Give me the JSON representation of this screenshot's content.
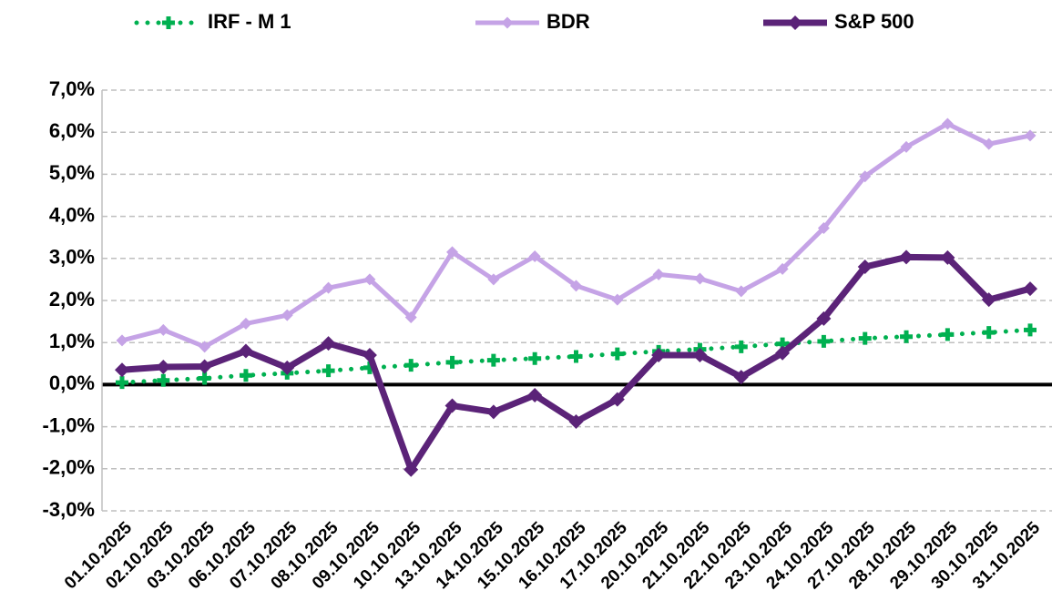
{
  "chart_data": {
    "type": "line",
    "categories": [
      "01.10.2025",
      "02.10.2025",
      "03.10.2025",
      "06.10.2025",
      "07.10.2025",
      "08.10.2025",
      "09.10.2025",
      "10.10.2025",
      "13.10.2025",
      "14.10.2025",
      "15.10.2025",
      "16.10.2025",
      "17.10.2025",
      "20.10.2025",
      "21.10.2025",
      "22.10.2025",
      "23.10.2025",
      "24.10.2025",
      "27.10.2025",
      "28.10.2025",
      "29.10.2025",
      "30.10.2025",
      "31.10.2025"
    ],
    "series": [
      {
        "name": "IRF - M 1",
        "color": "#00b050",
        "line_style": "dotted",
        "marker": "cross",
        "values": [
          0.05,
          0.1,
          0.15,
          0.22,
          0.27,
          0.33,
          0.4,
          0.46,
          0.53,
          0.58,
          0.62,
          0.67,
          0.73,
          0.79,
          0.84,
          0.9,
          0.97,
          1.03,
          1.1,
          1.14,
          1.19,
          1.24,
          1.3
        ]
      },
      {
        "name": "BDR",
        "color": "#c5a3e6",
        "line_style": "solid",
        "marker": "diamond",
        "values": [
          1.05,
          1.3,
          0.9,
          1.45,
          1.65,
          2.3,
          2.5,
          1.6,
          3.15,
          2.5,
          3.05,
          2.35,
          2.02,
          2.62,
          2.52,
          2.22,
          2.75,
          3.72,
          4.95,
          5.65,
          6.2,
          5.72,
          5.92
        ]
      },
      {
        "name": "S&P 500",
        "color": "#5b2378",
        "line_style": "solid",
        "marker": "diamond",
        "values": [
          0.35,
          0.42,
          0.43,
          0.8,
          0.4,
          0.98,
          0.7,
          -2.02,
          -0.5,
          -0.65,
          -0.25,
          -0.88,
          -0.35,
          0.7,
          0.7,
          0.18,
          0.75,
          1.57,
          2.8,
          3.03,
          3.02,
          2.02,
          2.28
        ]
      }
    ],
    "ylim": [
      -3,
      7
    ],
    "yticks": [
      {
        "value": -3,
        "label": "-3,0%"
      },
      {
        "value": -2,
        "label": "-2,0%"
      },
      {
        "value": -1,
        "label": "-1,0%"
      },
      {
        "value": 0,
        "label": "0,0%"
      },
      {
        "value": 1,
        "label": "1,0%"
      },
      {
        "value": 2,
        "label": "2,0%"
      },
      {
        "value": 3,
        "label": "3,0%"
      },
      {
        "value": 4,
        "label": "4,0%"
      },
      {
        "value": 5,
        "label": "5,0%"
      },
      {
        "value": 6,
        "label": "6,0%"
      },
      {
        "value": 7,
        "label": "7,0%"
      }
    ],
    "grid": true,
    "legend": "top"
  }
}
